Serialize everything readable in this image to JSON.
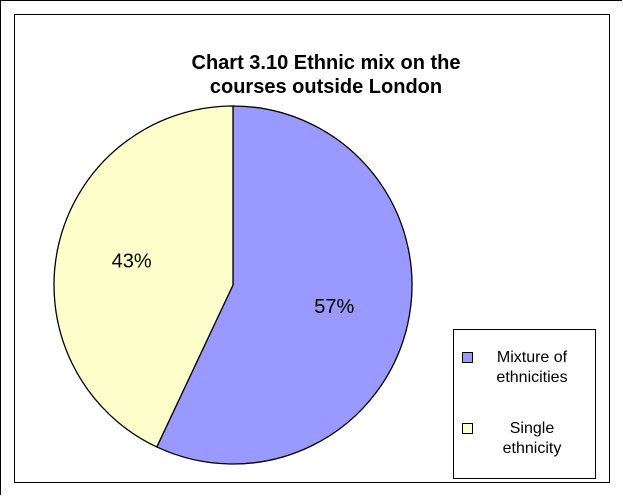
{
  "chart_data": {
    "type": "pie",
    "title_lines": [
      "Chart 3.10 Ethnic mix on the",
      "courses outside London"
    ],
    "slices": [
      {
        "label_lines": [
          "Mixture of",
          "ethnicities"
        ],
        "value": 57,
        "value_label": "57%",
        "color": "#9999ff"
      },
      {
        "label_lines": [
          "Single",
          "ethnicity"
        ],
        "value": 43,
        "value_label": "43%",
        "color": "#ffffcc"
      }
    ],
    "legend_position": "bottom-right"
  }
}
